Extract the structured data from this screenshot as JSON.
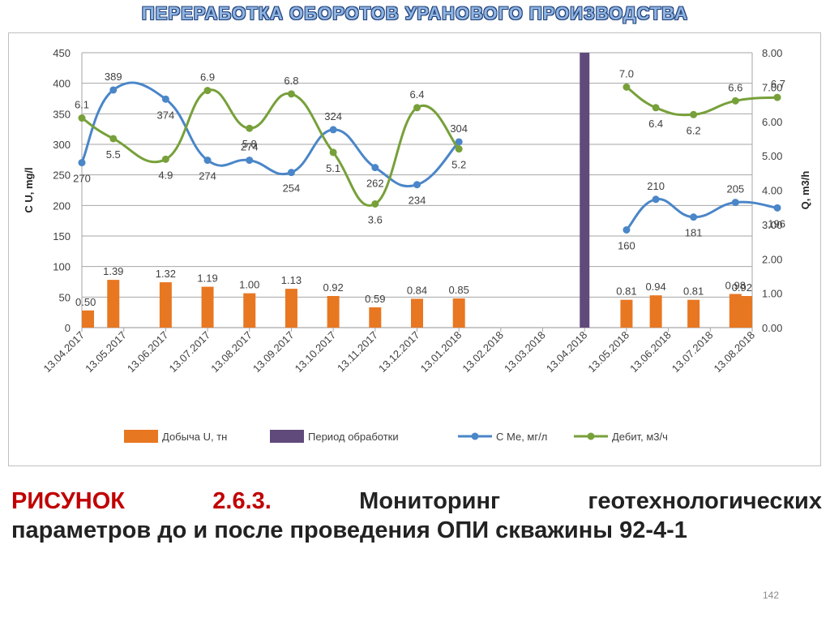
{
  "slide": {
    "title": "ПЕРЕРАБОТКА ОБОРОТОВ УРАНОВОГО ПРОИЗВОДСТВА",
    "caption_prefix": "РИСУНОК",
    "caption_number": "2.6.3.",
    "caption_word1": "Мониторинг",
    "caption_word2": "геотехнологических",
    "caption_line2": "параметров до и после проведения ОПИ скважины 92-4-1",
    "page_number": "142"
  },
  "chart_data": {
    "type": "bar",
    "categories": [
      "13.04.2017",
      "13.05.2017",
      "13.06.2017",
      "13.07.2017",
      "13.08.2017",
      "13.09.2017",
      "13.10.2017",
      "13.11.2017",
      "13.12.2017",
      "13.01.2018",
      "13.02.2018",
      "13.03.2018",
      "13.04.2018",
      "13.05.2018",
      "13.06.2018",
      "13.07.2018",
      "13.08.2018"
    ],
    "ylabel": "C U, mg/l",
    "y2label": "Q, m3/h",
    "ylim": [
      0,
      450
    ],
    "y2lim": [
      0,
      8
    ],
    "yticks": [
      "0",
      "50",
      "100",
      "150",
      "200",
      "250",
      "300",
      "350",
      "400",
      "450"
    ],
    "y2ticks": [
      "0.00",
      "1.00",
      "2.00",
      "3.00",
      "4.00",
      "5.00",
      "6.00",
      "7.00",
      "8.00"
    ],
    "grid": true,
    "legend_position": "bottom",
    "series": [
      {
        "name": "Добыча U, тн",
        "type": "bar",
        "axis": "y2",
        "color": "#e87722",
        "points": [
          {
            "x": 0.0,
            "value": 0.5,
            "label": "0.50"
          },
          {
            "x": 0.75,
            "value": 1.39,
            "label": "1.39"
          },
          {
            "x": 2.0,
            "value": 1.32,
            "label": "1.32"
          },
          {
            "x": 3.0,
            "value": 1.19,
            "label": "1.19"
          },
          {
            "x": 4.0,
            "value": 1.0,
            "label": "1.00"
          },
          {
            "x": 5.0,
            "value": 1.13,
            "label": "1.13"
          },
          {
            "x": 6.0,
            "value": 0.92,
            "label": "0.92"
          },
          {
            "x": 7.0,
            "value": 0.59,
            "label": "0.59"
          },
          {
            "x": 8.0,
            "value": 0.84,
            "label": "0.84"
          },
          {
            "x": 9.0,
            "value": 0.85,
            "label": "0.85"
          },
          {
            "x": 13.0,
            "value": 0.81,
            "label": "0.81"
          },
          {
            "x": 13.7,
            "value": 0.94,
            "label": "0.94"
          },
          {
            "x": 14.6,
            "value": 0.81,
            "label": "0.81"
          },
          {
            "x": 15.6,
            "value": 0.98,
            "label": "0.98"
          },
          {
            "x": 16.6,
            "value": 0.92,
            "label": "0.92"
          }
        ]
      },
      {
        "name": "Период обработки",
        "type": "bar",
        "axis": "y2",
        "color": "#604a7b",
        "points": [
          {
            "x": 12.0,
            "value": 8.0
          }
        ]
      },
      {
        "name": "С Ме, мг/л",
        "type": "line",
        "axis": "y",
        "color": "#4a86c8",
        "segments": [
          [
            {
              "x": 0.0,
              "value": 270,
              "label": "270"
            },
            {
              "x": 0.75,
              "value": 389,
              "label": "389"
            },
            {
              "x": 2.0,
              "value": 374,
              "label": "374"
            },
            {
              "x": 3.0,
              "value": 274,
              "label": "274"
            },
            {
              "x": 4.0,
              "value": 274,
              "label": "274"
            },
            {
              "x": 5.0,
              "value": 254,
              "label": "254"
            },
            {
              "x": 6.0,
              "value": 324,
              "label": "324"
            },
            {
              "x": 7.0,
              "value": 262,
              "label": "262"
            },
            {
              "x": 8.0,
              "value": 234,
              "label": "234"
            },
            {
              "x": 9.0,
              "value": 304,
              "label": "304"
            }
          ],
          [
            {
              "x": 13.0,
              "value": 160,
              "label": "160"
            },
            {
              "x": 13.7,
              "value": 210,
              "label": "210"
            },
            {
              "x": 14.6,
              "value": 181,
              "label": "181"
            },
            {
              "x": 15.6,
              "value": 205,
              "label": "205"
            },
            {
              "x": 16.6,
              "value": 196,
              "label": "196"
            }
          ]
        ]
      },
      {
        "name": "Дебит, м3/ч",
        "type": "line",
        "axis": "y2",
        "color": "#77a03a",
        "segments": [
          [
            {
              "x": 0.0,
              "value": 6.1,
              "label": "6.1"
            },
            {
              "x": 0.75,
              "value": 5.5,
              "label": "5.5"
            },
            {
              "x": 2.0,
              "value": 4.9,
              "label": "4.9"
            },
            {
              "x": 3.0,
              "value": 6.9,
              "label": "6.9"
            },
            {
              "x": 4.0,
              "value": 5.8,
              "label": "5.8"
            },
            {
              "x": 5.0,
              "value": 6.8,
              "label": "6.8"
            },
            {
              "x": 6.0,
              "value": 5.1,
              "label": "5.1"
            },
            {
              "x": 7.0,
              "value": 3.6,
              "label": "3.6"
            },
            {
              "x": 8.0,
              "value": 6.4,
              "label": "6.4"
            },
            {
              "x": 9.0,
              "value": 5.2,
              "label": "5.2"
            }
          ],
          [
            {
              "x": 13.0,
              "value": 7.0,
              "label": "7.0"
            },
            {
              "x": 13.7,
              "value": 6.4,
              "label": "6.4"
            },
            {
              "x": 14.6,
              "value": 6.2,
              "label": "6.2"
            },
            {
              "x": 15.6,
              "value": 6.6,
              "label": "6.6"
            },
            {
              "x": 16.6,
              "value": 6.7,
              "label": "6.7"
            }
          ]
        ]
      }
    ]
  }
}
